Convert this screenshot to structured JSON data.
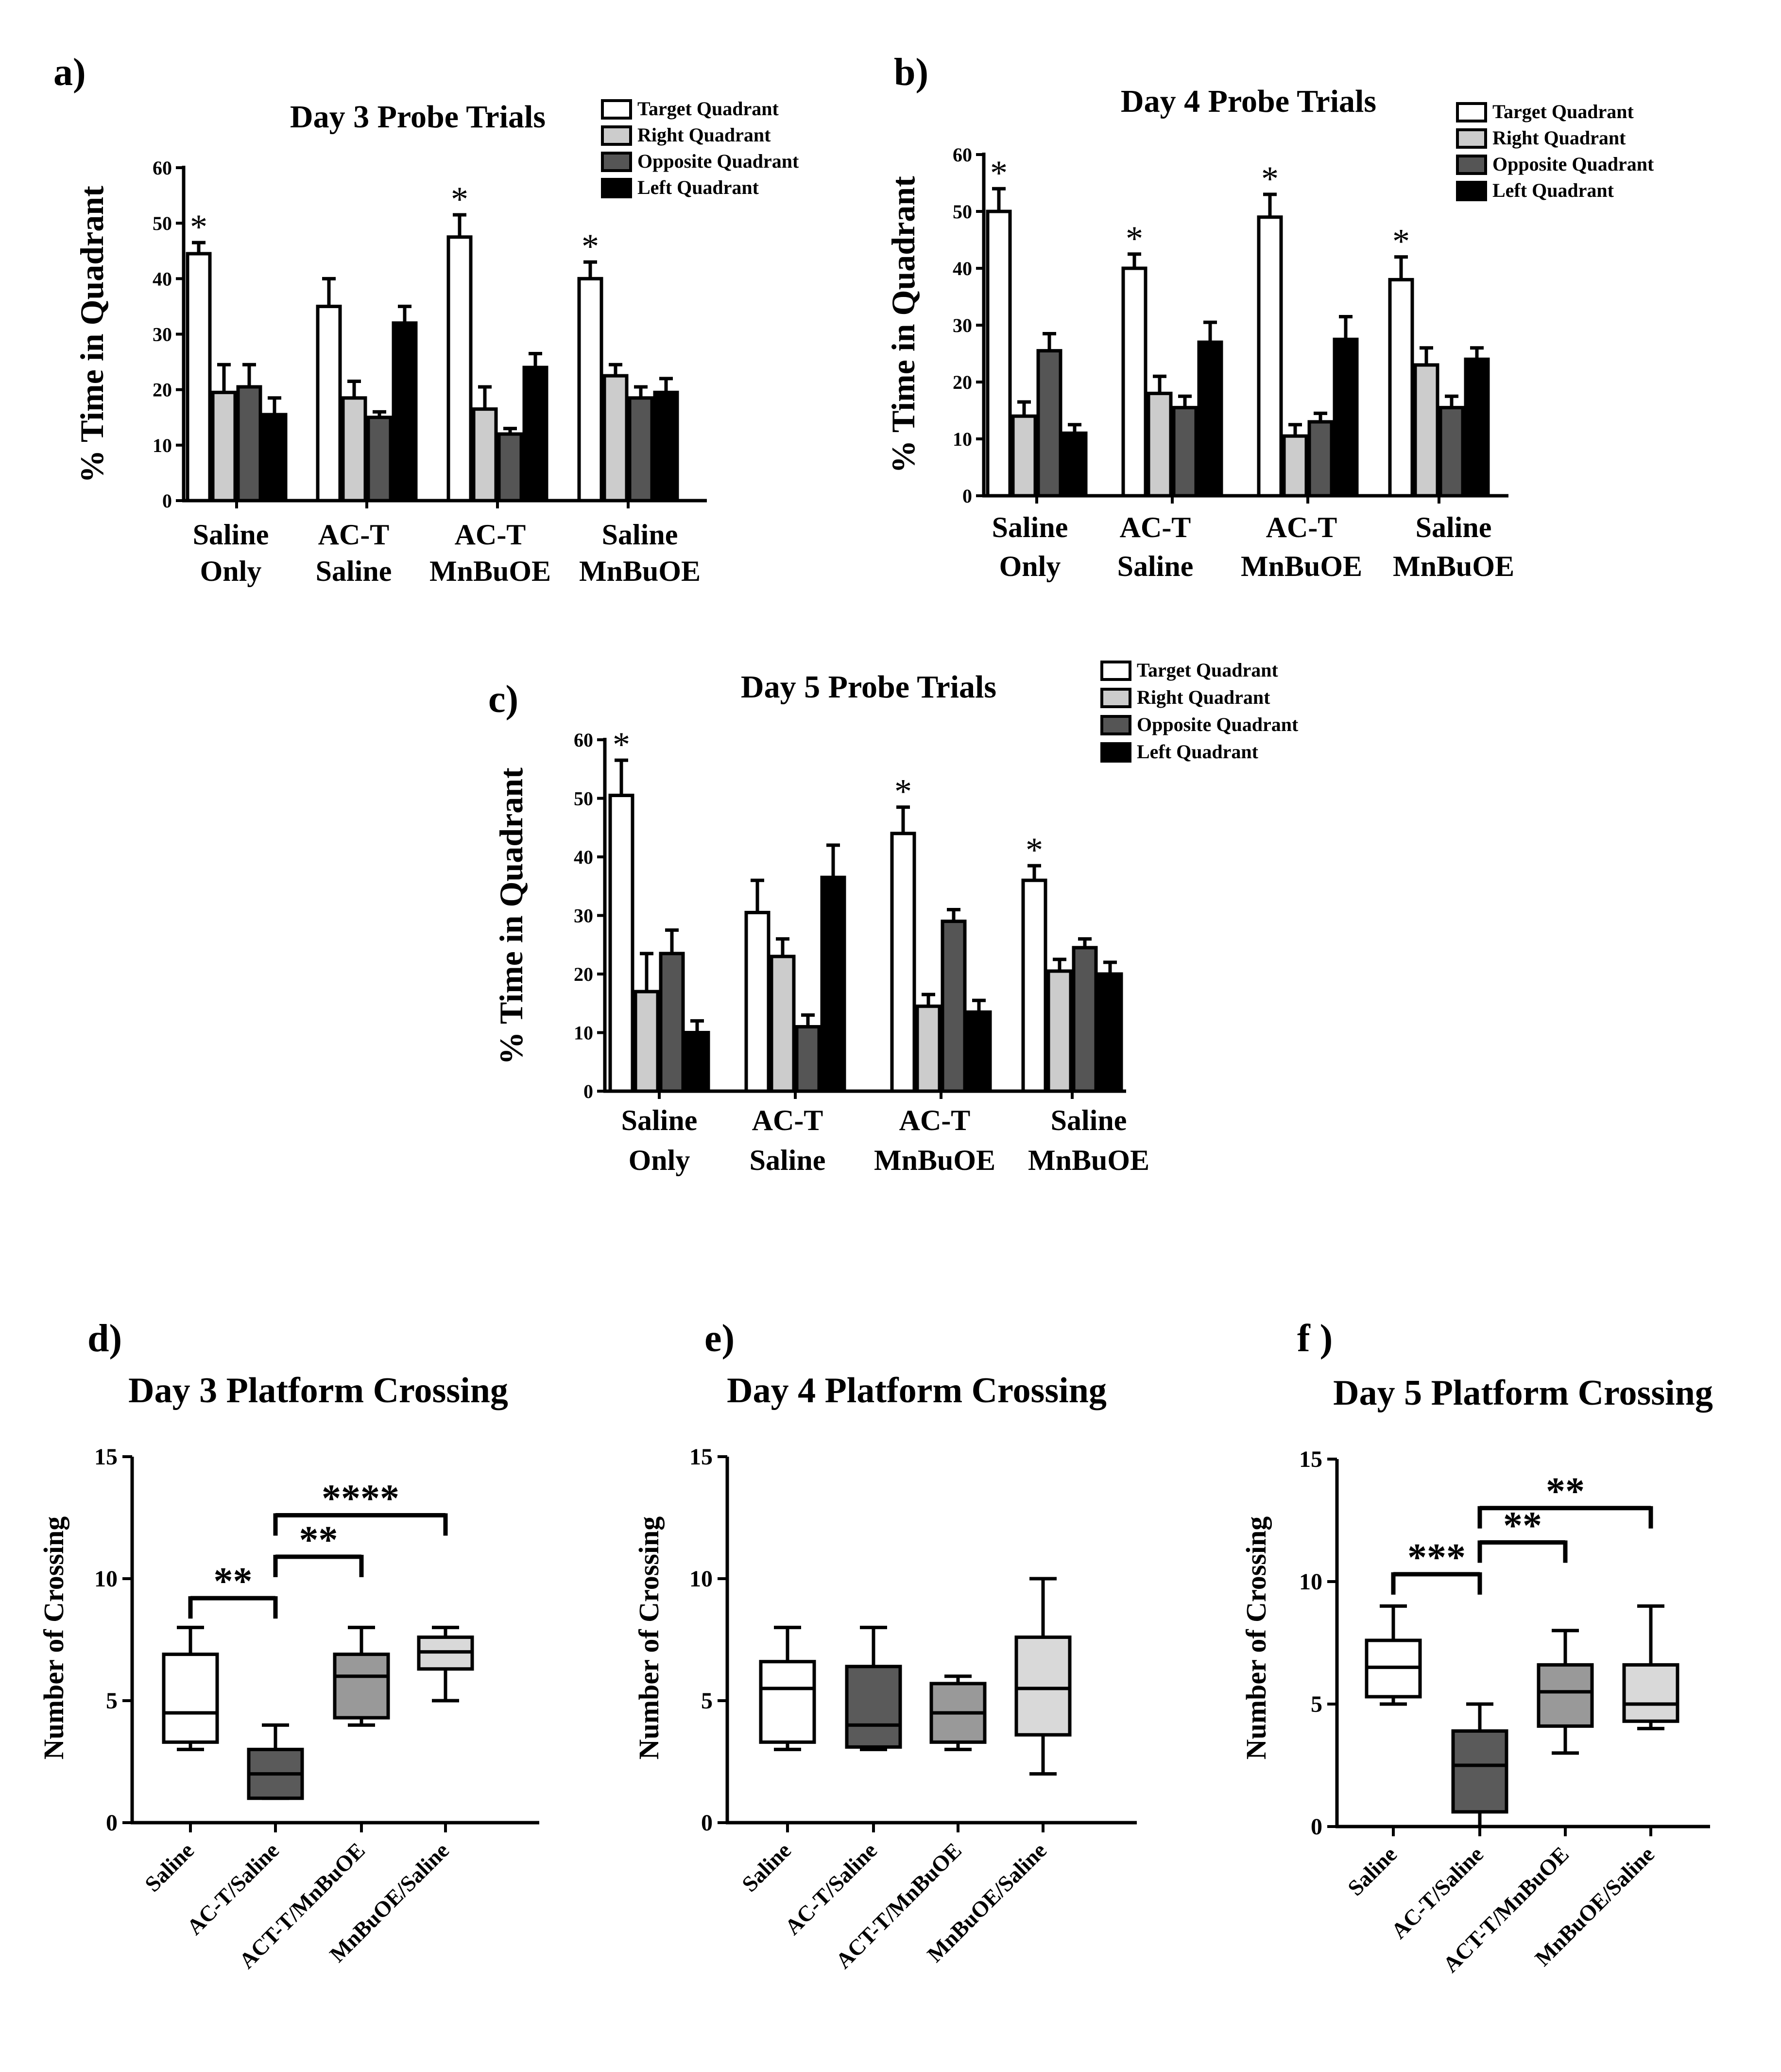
{
  "colors": {
    "target": "#ffffff",
    "right": "#cccccc",
    "opposite": "#555555",
    "left": "#000000",
    "box_saline": "#ffffff",
    "box_act_saline": "#5a5a5a",
    "box_act_mnbuoe": "#999999",
    "box_mnbuoe_saline": "#d9d9d9"
  },
  "chart_data": [
    {
      "panel": "a)",
      "type": "bar",
      "title": "Day 3 Probe Trials",
      "ylabel": "% Time in Quadrant",
      "ylim": [
        0,
        60
      ],
      "yticks": [
        "0",
        "10",
        "20",
        "30",
        "40",
        "50",
        "60"
      ],
      "categories": [
        [
          "Saline",
          "Only"
        ],
        [
          "AC-T",
          "Saline"
        ],
        [
          "AC-T",
          "MnBuOE"
        ],
        [
          "Saline",
          "MnBuOE"
        ]
      ],
      "series": [
        {
          "name": "Target Quadrant",
          "values": [
            44.5,
            35,
            47.5,
            40
          ],
          "errors": [
            2,
            5,
            4,
            3
          ]
        },
        {
          "name": "Right Quadrant",
          "values": [
            19.5,
            18.5,
            16.5,
            22.5
          ],
          "errors": [
            5,
            3,
            4,
            2
          ]
        },
        {
          "name": "Opposite Quadrant",
          "values": [
            20.5,
            15,
            12,
            18.5
          ],
          "errors": [
            4,
            1,
            1,
            2
          ]
        },
        {
          "name": "Left Quadrant",
          "values": [
            15.5,
            32,
            24,
            19.5
          ],
          "errors": [
            3,
            3,
            2.5,
            2.5
          ]
        }
      ],
      "significance": [
        "*",
        "",
        "*",
        "*"
      ]
    },
    {
      "panel": "b)",
      "type": "bar",
      "title": "Day 4 Probe Trials",
      "ylabel": "% Time in Quadrant",
      "ylim": [
        0,
        60
      ],
      "yticks": [
        "0",
        "10",
        "20",
        "30",
        "40",
        "50",
        "60"
      ],
      "categories": [
        [
          "Saline",
          "Only"
        ],
        [
          "AC-T",
          "Saline"
        ],
        [
          "AC-T",
          "MnBuOE"
        ],
        [
          "Saline",
          "MnBuOE"
        ]
      ],
      "series": [
        {
          "name": "Target Quadrant",
          "values": [
            50,
            40,
            49,
            38
          ],
          "errors": [
            4,
            2.5,
            4,
            4
          ]
        },
        {
          "name": "Right Quadrant",
          "values": [
            14,
            18,
            10.5,
            23
          ],
          "errors": [
            2.5,
            3,
            2,
            3
          ]
        },
        {
          "name": "Opposite Quadrant",
          "values": [
            25.5,
            15.5,
            13,
            15.5
          ],
          "errors": [
            3,
            2,
            1.5,
            2
          ]
        },
        {
          "name": "Left Quadrant",
          "values": [
            11,
            27,
            27.5,
            24
          ],
          "errors": [
            1.5,
            3.5,
            4,
            2
          ]
        }
      ],
      "significance": [
        "*",
        "*",
        "*",
        "*"
      ]
    },
    {
      "panel": "c)",
      "type": "bar",
      "title": "Day 5 Probe Trials",
      "ylabel": "% Time in Quadrant",
      "ylim": [
        0,
        60
      ],
      "yticks": [
        "0",
        "10",
        "20",
        "30",
        "40",
        "50",
        "60"
      ],
      "categories": [
        [
          "Saline",
          "Only"
        ],
        [
          "AC-T",
          "Saline"
        ],
        [
          "AC-T",
          "MnBuOE"
        ],
        [
          "Saline",
          "MnBuOE"
        ]
      ],
      "series": [
        {
          "name": "Target Quadrant",
          "values": [
            50.5,
            30.5,
            44,
            36
          ],
          "errors": [
            6,
            5.5,
            4.5,
            2.5
          ]
        },
        {
          "name": "Right Quadrant",
          "values": [
            17,
            23,
            14.5,
            20.5
          ],
          "errors": [
            6.5,
            3,
            2,
            2
          ]
        },
        {
          "name": "Opposite Quadrant",
          "values": [
            23.5,
            11,
            29,
            24.5
          ],
          "errors": [
            4,
            2,
            2,
            1.5
          ]
        },
        {
          "name": "Left Quadrant",
          "values": [
            10,
            36.5,
            13.5,
            20
          ],
          "errors": [
            2,
            5.5,
            2,
            2
          ]
        }
      ],
      "significance": [
        "*",
        "",
        "*",
        "*"
      ]
    },
    {
      "panel": "d)",
      "type": "box",
      "title": "Day 3 Platform Crossing",
      "ylabel": "Number of Crossing",
      "ylim": [
        0,
        15
      ],
      "yticks": [
        "0",
        "5",
        "10",
        "15"
      ],
      "categories": [
        "Saline",
        "AC-T/Saline",
        "ACT-T/MnBuOE",
        "MnBuOE/Saline"
      ],
      "boxes": [
        {
          "min": 3,
          "q1": 3.3,
          "median": 4.5,
          "q3": 6.9,
          "max": 8
        },
        {
          "min": 1,
          "q1": 1,
          "median": 2,
          "q3": 3,
          "max": 4
        },
        {
          "min": 4,
          "q1": 4.3,
          "median": 6,
          "q3": 6.9,
          "max": 8
        },
        {
          "min": 5,
          "q1": 6.3,
          "median": 7,
          "q3": 7.6,
          "max": 8
        }
      ],
      "comparisons": [
        {
          "from": 0,
          "to": 1,
          "y": 9.2,
          "label": "**"
        },
        {
          "from": 1,
          "to": 2,
          "y": 10.9,
          "label": "**"
        },
        {
          "from": 1,
          "to": 3,
          "y": 12.6,
          "label": "****"
        }
      ]
    },
    {
      "panel": "e)",
      "type": "box",
      "title": "Day 4 Platform Crossing",
      "ylabel": "Number of Crossing",
      "ylim": [
        0,
        15
      ],
      "yticks": [
        "0",
        "5",
        "10",
        "15"
      ],
      "categories": [
        "Saline",
        "AC-T/Saline",
        "ACT-T/MnBuOE",
        "MnBuOE/Saline"
      ],
      "boxes": [
        {
          "min": 3,
          "q1": 3.3,
          "median": 5.5,
          "q3": 6.6,
          "max": 8
        },
        {
          "min": 3,
          "q1": 3.1,
          "median": 4,
          "q3": 6.4,
          "max": 8
        },
        {
          "min": 3,
          "q1": 3.3,
          "median": 4.5,
          "q3": 5.7,
          "max": 6
        },
        {
          "min": 2,
          "q1": 3.6,
          "median": 5.5,
          "q3": 7.6,
          "max": 10
        }
      ],
      "comparisons": []
    },
    {
      "panel": "f )",
      "type": "box",
      "title": "Day 5 Platform Crossing",
      "ylabel": "Number of Crossing",
      "ylim": [
        0,
        15
      ],
      "yticks": [
        "0",
        "5",
        "10",
        "15"
      ],
      "categories": [
        "Saline",
        "AC-T/Saline",
        "ACT-T/MnBuOE",
        "MnBuOE/Saline"
      ],
      "boxes": [
        {
          "min": 5,
          "q1": 5.3,
          "median": 6.5,
          "q3": 7.6,
          "max": 9
        },
        {
          "min": 0,
          "q1": 0.6,
          "median": 2.5,
          "q3": 3.9,
          "max": 5
        },
        {
          "min": 3,
          "q1": 4.1,
          "median": 5.5,
          "q3": 6.6,
          "max": 8
        },
        {
          "min": 4,
          "q1": 4.3,
          "median": 5,
          "q3": 6.6,
          "max": 9
        }
      ],
      "comparisons": [
        {
          "from": 0,
          "to": 1,
          "y": 10.3,
          "label": "***"
        },
        {
          "from": 1,
          "to": 2,
          "y": 11.6,
          "label": "**"
        },
        {
          "from": 1,
          "to": 3,
          "y": 13,
          "label": "**"
        }
      ]
    }
  ]
}
